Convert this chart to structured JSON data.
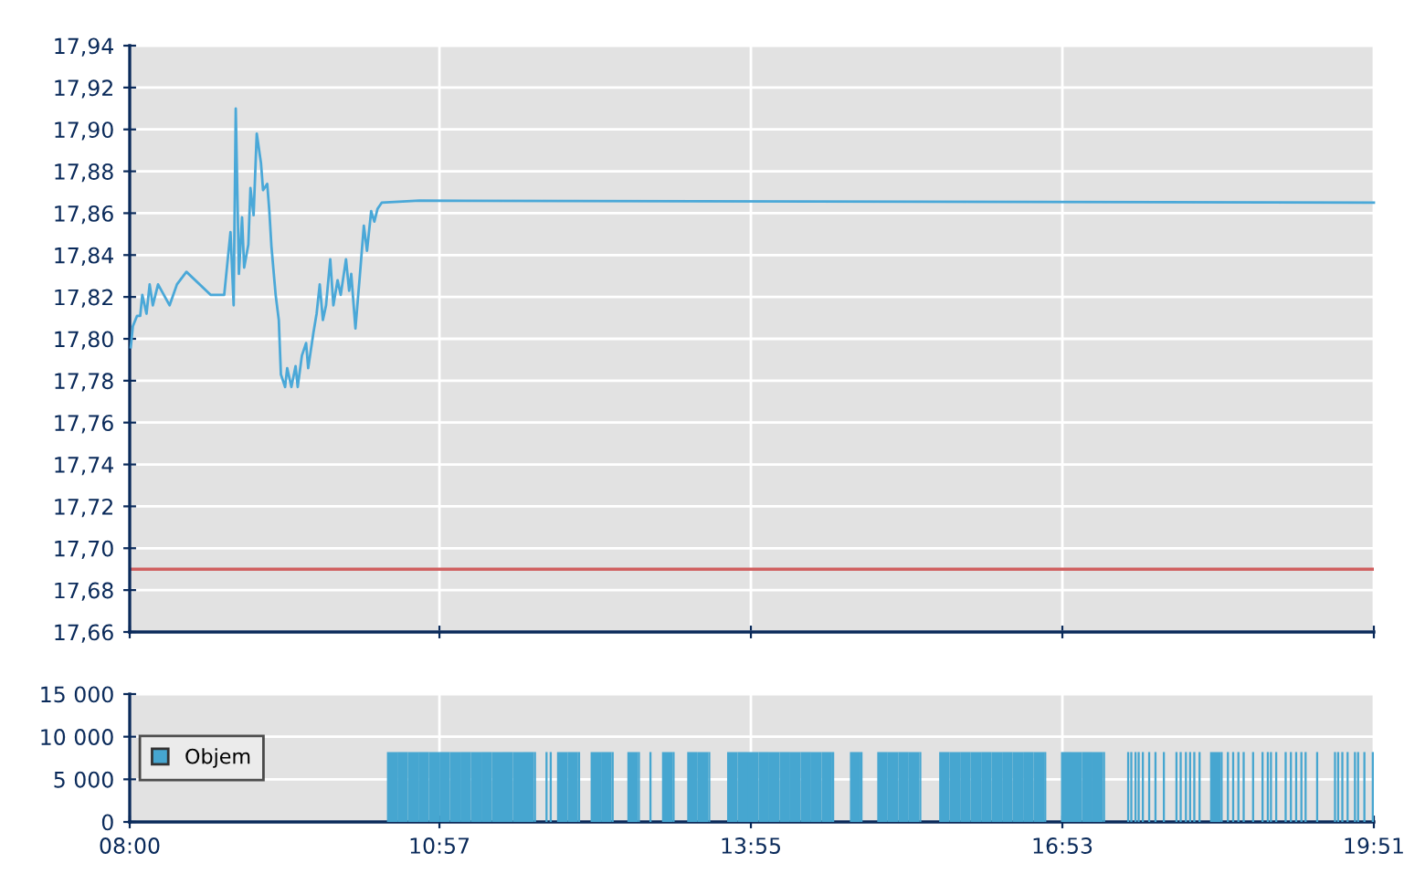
{
  "chart_data": [
    {
      "type": "line",
      "tick_labels": "y",
      "grid": true,
      "legend": false,
      "xlim": [
        8,
        19.85
      ],
      "xticks": [
        {
          "value": 8,
          "label": null
        },
        {
          "value": 10.95,
          "label": null
        },
        {
          "value": 13.9167,
          "label": null
        },
        {
          "value": 16.8833,
          "label": null
        },
        {
          "value": 19.85,
          "label": null
        }
      ],
      "ylim": [
        17.66,
        17.94
      ],
      "yticks": [
        {
          "value": 17.66,
          "label": "17,66"
        },
        {
          "value": 17.68,
          "label": "17,68"
        },
        {
          "value": 17.7,
          "label": "17,70"
        },
        {
          "value": 17.72,
          "label": "17,72"
        },
        {
          "value": 17.74,
          "label": "17,74"
        },
        {
          "value": 17.76,
          "label": "17,76"
        },
        {
          "value": 17.78,
          "label": "17,78"
        },
        {
          "value": 17.8,
          "label": "17,80"
        },
        {
          "value": 17.82,
          "label": "17,82"
        },
        {
          "value": 17.84,
          "label": "17,84"
        },
        {
          "value": 17.86,
          "label": "17,86"
        },
        {
          "value": 17.88,
          "label": "17,88"
        },
        {
          "value": 17.9,
          "label": "17,90"
        },
        {
          "value": 17.92,
          "label": "17,92"
        },
        {
          "value": 17.94,
          "label": "17,94"
        }
      ],
      "ref_lines": [
        {
          "axis": "y",
          "value": 17.69,
          "label": null,
          "color": "#d06060"
        }
      ],
      "series": [
        {
          "color": "#4aa8d8",
          "x": [
            8.01,
            8.03,
            8.07,
            8.1,
            8.12,
            8.16,
            8.19,
            8.22,
            8.27,
            8.38,
            8.45,
            8.54,
            8.77,
            8.9,
            8.96,
            8.99,
            9.01,
            9.04,
            9.07,
            9.09,
            9.13,
            9.15,
            9.18,
            9.21,
            9.25,
            9.27,
            9.31,
            9.33,
            9.35,
            9.39,
            9.42,
            9.44,
            9.48,
            9.5,
            9.54,
            9.58,
            9.6,
            9.64,
            9.68,
            9.7,
            9.75,
            9.78,
            9.81,
            9.84,
            9.87,
            9.91,
            9.94,
            9.98,
            10.01,
            10.06,
            10.09,
            10.11,
            10.15,
            10.19,
            10.23,
            10.26,
            10.3,
            10.33,
            10.36,
            10.4,
            10.76,
            19.85
          ],
          "values": [
            17.796,
            17.806,
            17.811,
            17.811,
            17.821,
            17.812,
            17.826,
            17.816,
            17.826,
            17.816,
            17.826,
            17.832,
            17.821,
            17.821,
            17.851,
            17.816,
            17.91,
            17.831,
            17.858,
            17.834,
            17.845,
            17.872,
            17.859,
            17.898,
            17.884,
            17.871,
            17.874,
            17.861,
            17.844,
            17.821,
            17.809,
            17.783,
            17.777,
            17.786,
            17.777,
            17.787,
            17.777,
            17.792,
            17.798,
            17.786,
            17.803,
            17.812,
            17.826,
            17.809,
            17.816,
            17.838,
            17.816,
            17.828,
            17.821,
            17.838,
            17.823,
            17.831,
            17.805,
            17.829,
            17.854,
            17.842,
            17.861,
            17.856,
            17.862,
            17.865,
            17.866,
            17.865
          ]
        }
      ]
    },
    {
      "type": "bar",
      "grid": true,
      "legend": "left",
      "xlim": [
        8,
        19.85
      ],
      "xticks": [
        {
          "value": 8,
          "label": "08:00"
        },
        {
          "value": 10.95,
          "label": "10:57"
        },
        {
          "value": 13.9167,
          "label": "13:55"
        },
        {
          "value": 16.8833,
          "label": "16:53"
        },
        {
          "value": 19.85,
          "label": "19:51"
        }
      ],
      "ylim": [
        0,
        15000
      ],
      "yticks": [
        {
          "value": 0,
          "label": "0"
        },
        {
          "value": 5000,
          "label": "5 000"
        },
        {
          "value": 10000,
          "label": "10 000"
        },
        {
          "value": 15000,
          "label": "15 000"
        }
      ],
      "series": [
        {
          "name": "Objem",
          "color": "#46a6d0",
          "x": [
            10.45,
            10.55,
            10.65,
            10.75,
            10.85,
            10.95,
            11.05,
            11.15,
            11.25,
            11.35,
            11.45,
            11.55,
            11.65,
            11.75,
            11.85,
            11.96,
            12.0,
            12.07,
            12.17,
            12.27,
            12.39,
            12.49,
            12.59,
            12.74,
            12.84,
            12.95,
            13.07,
            13.17,
            13.31,
            13.41,
            13.51,
            13.69,
            13.79,
            13.89,
            13.99,
            14.09,
            14.19,
            14.29,
            14.39,
            14.49,
            14.59,
            14.69,
            14.86,
            14.96,
            15.12,
            15.22,
            15.32,
            15.42,
            15.52,
            15.71,
            15.81,
            15.91,
            16.01,
            16.11,
            16.21,
            16.31,
            16.41,
            16.51,
            16.61,
            16.71,
            16.87,
            16.97,
            17.07,
            17.17,
            17.27,
            17.5,
            17.53,
            17.57,
            17.6,
            17.64,
            17.7,
            17.76,
            17.84,
            17.96,
            18.0,
            18.05,
            18.09,
            18.13,
            18.18,
            18.29,
            18.39,
            18.45,
            18.5,
            18.55,
            18.6,
            18.69,
            18.78,
            18.83,
            18.86,
            18.91,
            19.0,
            19.05,
            19.1,
            19.15,
            19.19,
            19.3,
            19.47,
            19.5,
            19.54,
            19.59,
            19.66,
            19.69,
            19.75,
            19.83
          ],
          "values": [
            8200,
            8200,
            8200,
            8200,
            8200,
            8200,
            8200,
            8200,
            8200,
            8200,
            8200,
            8200,
            8200,
            8200,
            8200,
            8200,
            8200,
            8200,
            8200,
            8200,
            8200,
            8200,
            8200,
            8200,
            8200,
            8200,
            8200,
            8200,
            8200,
            8200,
            8200,
            8200,
            8200,
            8200,
            8200,
            8200,
            8200,
            8200,
            8200,
            8200,
            8200,
            8200,
            8200,
            8200,
            8200,
            8200,
            8200,
            8200,
            8200,
            8200,
            8200,
            8200,
            8200,
            8200,
            8200,
            8200,
            8200,
            8200,
            8200,
            8200,
            8200,
            8200,
            8200,
            8200,
            8200,
            8200,
            8200,
            8200,
            8200,
            8200,
            8200,
            8200,
            8200,
            8200,
            8200,
            8200,
            8200,
            8200,
            8200,
            8200,
            8200,
            8200,
            8200,
            8200,
            8200,
            8200,
            8200,
            8200,
            8200,
            8200,
            8200,
            8200,
            8200,
            8200,
            8200,
            8200,
            8200,
            8200,
            8200,
            8200,
            8200,
            8200,
            8200,
            8200
          ]
        }
      ]
    }
  ]
}
